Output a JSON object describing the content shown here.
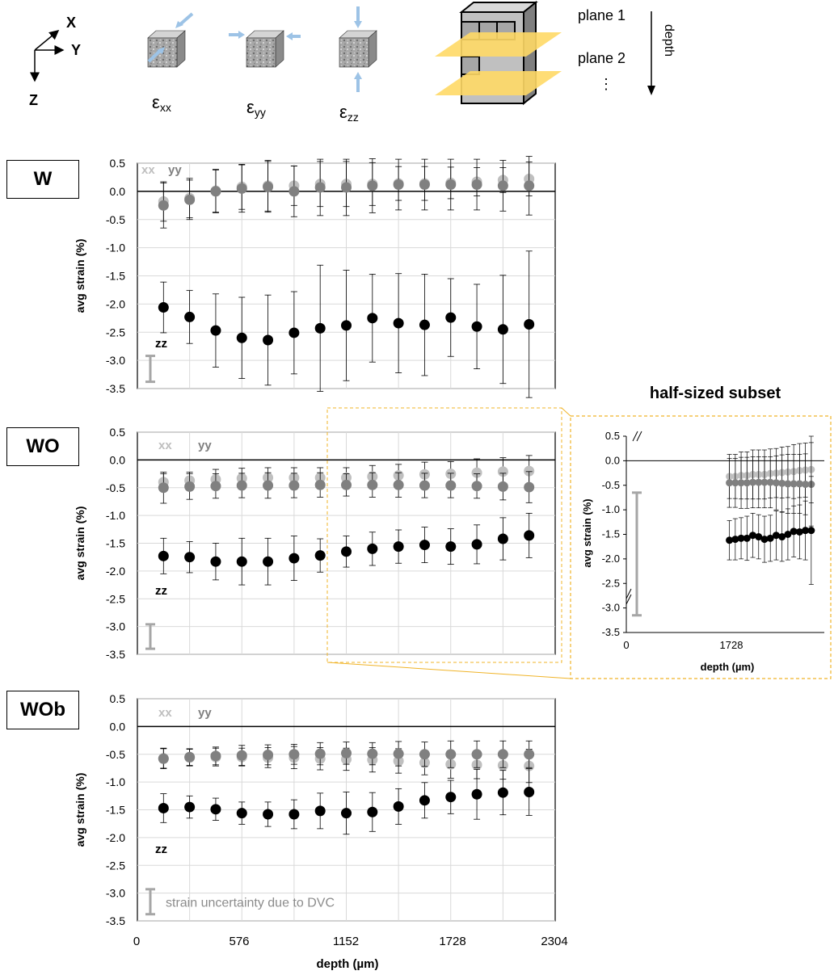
{
  "header": {
    "axes": {
      "x": "X",
      "y": "Y",
      "z": "Z"
    },
    "strain_components": [
      {
        "symbol": "ε",
        "subscript": "xx"
      },
      {
        "symbol": "ε",
        "subscript": "yy"
      },
      {
        "symbol": "ε",
        "subscript": "zz"
      }
    ],
    "planes": {
      "plane1": "plane 1",
      "plane2": "plane 2",
      "ellipsis": "⋮",
      "depth": "depth"
    }
  },
  "colors": {
    "xx": "#bfbfbf",
    "yy": "#808080",
    "zz": "#000000",
    "gridline": "#d9d9d9",
    "uncertainty_bar": "#a6a6a6",
    "plane": "#ffd966",
    "zoom_box": "#f0b429",
    "arrow": "#9dc3e6"
  },
  "shared_axis": {
    "xlabel": "depth (µm)",
    "x_ticks": [
      "0",
      "576",
      "1152",
      "1728",
      "2304"
    ],
    "xlim": [
      0,
      2304
    ]
  },
  "subset": {
    "title": "half-sized subset",
    "ylabel": "avg strain (%)",
    "xlabel": "depth (µm)",
    "x_ticks": [
      "0",
      "1728"
    ],
    "y_ticks": [
      "0.5",
      "0.0",
      "-0.5",
      "-1.0",
      "-1.5",
      "-2.0",
      "-2.5",
      "-3.0",
      "-3.5"
    ]
  },
  "chart_data": [
    {
      "type": "scatter",
      "sample": "W",
      "ylabel": "avg strain (%)",
      "ylim": [
        -3.5,
        0.5
      ],
      "y_ticks": [
        "0.5",
        "0.0",
        "-0.5",
        "-1.0",
        "-1.5",
        "-2.0",
        "-2.5",
        "-3.0",
        "-3.5"
      ],
      "grid": true,
      "uncertainty_bar": [
        -3.38,
        -2.92
      ],
      "labels": {
        "xx": "xx",
        "yy": "yy",
        "zz": "zz"
      },
      "x": [
        144,
        288,
        432,
        576,
        720,
        864,
        1008,
        1152,
        1296,
        1440,
        1584,
        1728,
        1872,
        2016,
        2160
      ],
      "series": [
        {
          "name": "xx",
          "values": [
            -0.18,
            -0.12,
            0.01,
            0.08,
            0.1,
            0.1,
            0.13,
            0.13,
            0.13,
            0.14,
            0.14,
            0.15,
            0.17,
            0.2,
            0.22
          ],
          "errors": [
            0.35,
            0.35,
            0.38,
            0.4,
            0.45,
            0.35,
            0.4,
            0.4,
            0.38,
            0.3,
            0.3,
            0.28,
            0.25,
            0.22,
            0.3
          ]
        },
        {
          "name": "yy",
          "values": [
            -0.25,
            -0.15,
            0.0,
            0.05,
            0.08,
            0.0,
            0.07,
            0.07,
            0.1,
            0.12,
            0.12,
            0.12,
            0.12,
            0.1,
            0.1
          ],
          "errors": [
            0.4,
            0.35,
            0.38,
            0.42,
            0.45,
            0.45,
            0.5,
            0.5,
            0.48,
            0.45,
            0.45,
            0.45,
            0.45,
            0.45,
            0.52
          ]
        },
        {
          "name": "zz",
          "values": [
            -2.06,
            -2.23,
            -2.47,
            -2.6,
            -2.64,
            -2.51,
            -2.43,
            -2.38,
            -2.25,
            -2.34,
            -2.37,
            -2.24,
            -2.4,
            -2.45,
            -2.36
          ],
          "errors": [
            0.45,
            0.47,
            0.65,
            0.72,
            0.8,
            0.73,
            1.12,
            0.98,
            0.78,
            0.88,
            0.9,
            0.69,
            0.75,
            0.96,
            1.3
          ]
        }
      ]
    },
    {
      "type": "scatter",
      "sample": "WO",
      "ylabel": "avg strain (%)",
      "ylim": [
        -3.5,
        0.5
      ],
      "y_ticks": [
        "0.5",
        "0.0",
        "-0.5",
        "-1.0",
        "-1.5",
        "-2.0",
        "-2.5",
        "-3.0",
        "-3.5"
      ],
      "grid": true,
      "uncertainty_bar": [
        -3.4,
        -2.96
      ],
      "labels": {
        "xx": "xx",
        "yy": "yy",
        "zz": "zz"
      },
      "x": [
        144,
        288,
        432,
        576,
        720,
        864,
        1008,
        1152,
        1296,
        1440,
        1584,
        1728,
        1872,
        2016,
        2160
      ],
      "series": [
        {
          "name": "xx",
          "values": [
            -0.4,
            -0.37,
            -0.35,
            -0.33,
            -0.32,
            -0.32,
            -0.32,
            -0.32,
            -0.3,
            -0.28,
            -0.26,
            -0.25,
            -0.23,
            -0.21,
            -0.2
          ],
          "errors": [
            0.15,
            0.15,
            0.18,
            0.18,
            0.18,
            0.18,
            0.18,
            0.18,
            0.2,
            0.2,
            0.22,
            0.22,
            0.25,
            0.25,
            0.28
          ]
        },
        {
          "name": "yy",
          "values": [
            -0.5,
            -0.48,
            -0.47,
            -0.46,
            -0.46,
            -0.46,
            -0.45,
            -0.45,
            -0.45,
            -0.45,
            -0.46,
            -0.46,
            -0.47,
            -0.48,
            -0.49
          ],
          "errors": [
            0.28,
            0.23,
            0.22,
            0.22,
            0.23,
            0.22,
            0.22,
            0.2,
            0.22,
            0.22,
            0.22,
            0.22,
            0.22,
            0.24,
            0.28
          ]
        },
        {
          "name": "zz",
          "values": [
            -1.73,
            -1.75,
            -1.83,
            -1.83,
            -1.83,
            -1.77,
            -1.72,
            -1.65,
            -1.6,
            -1.56,
            -1.53,
            -1.56,
            -1.52,
            -1.42,
            -1.36
          ],
          "errors": [
            0.32,
            0.28,
            0.33,
            0.42,
            0.42,
            0.4,
            0.3,
            0.28,
            0.3,
            0.3,
            0.32,
            0.32,
            0.35,
            0.38,
            0.4
          ]
        }
      ]
    },
    {
      "type": "scatter",
      "sample": "WOb",
      "ylabel": "avg strain (%)",
      "ylim": [
        -3.5,
        0.5
      ],
      "y_ticks": [
        "0.5",
        "0.0",
        "-0.5",
        "-1.0",
        "-1.5",
        "-2.0",
        "-2.5",
        "-3.0",
        "-3.5"
      ],
      "grid": true,
      "uncertainty_bar": [
        -3.38,
        -2.93
      ],
      "uncertainty_label": "strain uncertainty due to DVC",
      "labels": {
        "xx": "xx",
        "yy": "yy",
        "zz": "zz"
      },
      "x": [
        144,
        288,
        432,
        576,
        720,
        864,
        1008,
        1152,
        1296,
        1440,
        1584,
        1728,
        1872,
        2016,
        2160
      ],
      "series": [
        {
          "name": "xx",
          "values": [
            -0.57,
            -0.56,
            -0.55,
            -0.55,
            -0.56,
            -0.56,
            -0.58,
            -0.59,
            -0.6,
            -0.62,
            -0.65,
            -0.68,
            -0.69,
            -0.7,
            -0.71
          ],
          "errors": [
            0.18,
            0.15,
            0.16,
            0.16,
            0.18,
            0.2,
            0.2,
            0.2,
            0.22,
            0.22,
            0.22,
            0.25,
            0.25,
            0.25,
            0.3
          ]
        },
        {
          "name": "yy",
          "values": [
            -0.58,
            -0.55,
            -0.53,
            -0.52,
            -0.51,
            -0.5,
            -0.49,
            -0.48,
            -0.49,
            -0.49,
            -0.5,
            -0.5,
            -0.5,
            -0.5,
            -0.5
          ],
          "errors": [
            0.18,
            0.15,
            0.16,
            0.18,
            0.18,
            0.18,
            0.2,
            0.2,
            0.2,
            0.22,
            0.22,
            0.24,
            0.24,
            0.24,
            0.24
          ]
        },
        {
          "name": "zz",
          "values": [
            -1.47,
            -1.45,
            -1.49,
            -1.56,
            -1.58,
            -1.58,
            -1.52,
            -1.56,
            -1.54,
            -1.44,
            -1.33,
            -1.27,
            -1.22,
            -1.19,
            -1.18
          ],
          "errors": [
            0.26,
            0.2,
            0.2,
            0.2,
            0.22,
            0.26,
            0.32,
            0.38,
            0.35,
            0.32,
            0.32,
            0.3,
            0.45,
            0.4,
            0.42
          ]
        }
      ]
    },
    {
      "type": "scatter",
      "sample": "WO half-sized subset",
      "ylim": [
        -3.5,
        0.5
      ],
      "grid": false,
      "uncertainty_bar": [
        -3.15,
        -0.65
      ],
      "x": [
        1200,
        1268,
        1336,
        1404,
        1472,
        1540,
        1608,
        1676,
        1744,
        1812,
        1880,
        1948,
        2016,
        2084,
        2152
      ],
      "series": [
        {
          "name": "xx",
          "values": [
            -0.32,
            -0.32,
            -0.3,
            -0.3,
            -0.28,
            -0.28,
            -0.28,
            -0.26,
            -0.25,
            -0.24,
            -0.23,
            -0.22,
            -0.2,
            -0.19,
            -0.18
          ],
          "errors": [
            0.45,
            0.45,
            0.48,
            0.48,
            0.5,
            0.5,
            0.5,
            0.5,
            0.5,
            0.52,
            0.52,
            0.55,
            0.55,
            0.55,
            0.68
          ]
        },
        {
          "name": "yy",
          "values": [
            -0.45,
            -0.45,
            -0.45,
            -0.45,
            -0.44,
            -0.44,
            -0.44,
            -0.44,
            -0.45,
            -0.46,
            -0.47,
            -0.47,
            -0.47,
            -0.48,
            -0.48
          ],
          "errors": [
            0.5,
            0.5,
            0.52,
            0.52,
            0.52,
            0.52,
            0.52,
            0.52,
            0.55,
            0.58,
            0.6,
            0.6,
            0.6,
            0.62,
            0.85
          ]
        },
        {
          "name": "zz",
          "values": [
            -1.62,
            -1.6,
            -1.58,
            -1.58,
            -1.52,
            -1.55,
            -1.6,
            -1.58,
            -1.52,
            -1.55,
            -1.5,
            -1.44,
            -1.45,
            -1.42,
            -1.42
          ],
          "errors": [
            0.4,
            0.42,
            0.42,
            0.45,
            0.45,
            0.45,
            0.47,
            0.47,
            0.5,
            0.5,
            0.52,
            0.52,
            0.55,
            0.6,
            1.1
          ]
        }
      ]
    }
  ],
  "samples": {
    "W": "W",
    "WO": "WO",
    "WOb": "WOb"
  }
}
